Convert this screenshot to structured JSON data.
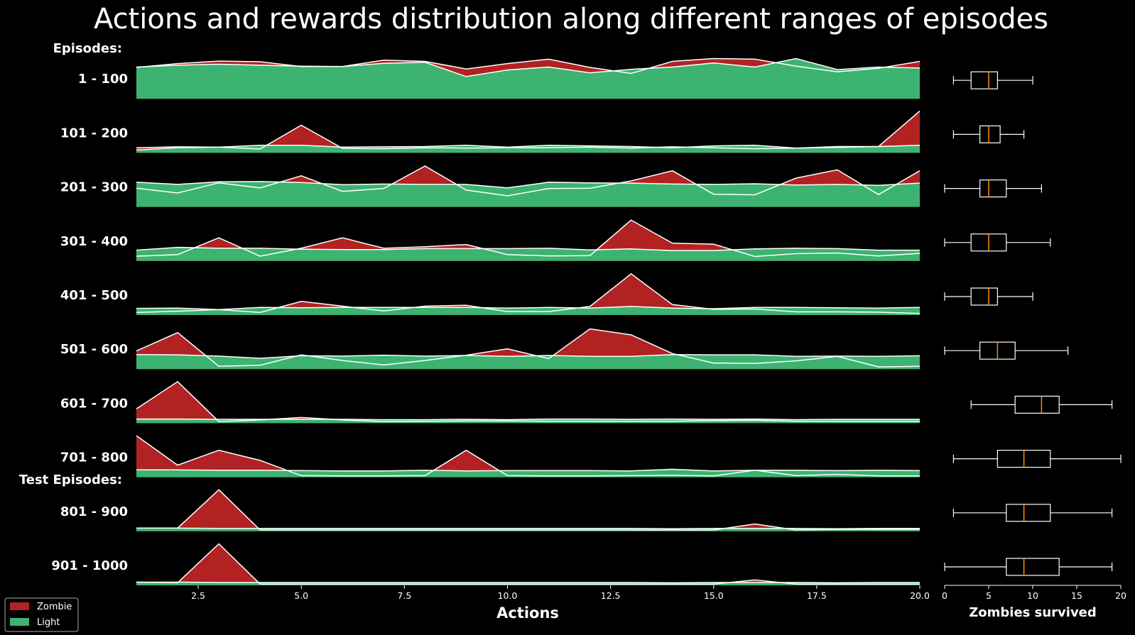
{
  "chart_data": {
    "type": "area",
    "title": "Actions and rewards distribution along different ranges of episodes",
    "group_labels": [
      "Episodes:",
      "Test Episodes:"
    ],
    "xlabel": "Actions",
    "box_xlabel": "Zombies survived",
    "x": [
      1,
      2,
      3,
      4,
      5,
      6,
      7,
      8,
      9,
      10,
      11,
      12,
      13,
      14,
      15,
      16,
      17,
      18,
      19,
      20
    ],
    "xlim": [
      1,
      20
    ],
    "xticks": [
      2.5,
      5.0,
      7.5,
      10.0,
      12.5,
      15.0,
      17.5,
      20.0
    ],
    "xtick_labels": [
      "2.5",
      "5.0",
      "7.5",
      "10.0",
      "12.5",
      "15.0",
      "17.5",
      "20.0"
    ],
    "box_xlim": [
      0,
      20
    ],
    "box_xticks": [
      0,
      5,
      10,
      15,
      20
    ],
    "box_xtick_labels": [
      "0",
      "5",
      "10",
      "15",
      "20"
    ],
    "legend": {
      "position": "bottom-left",
      "entries": [
        {
          "name": "Zombie",
          "color": "#b22222"
        },
        {
          "name": "Light",
          "color": "#3cb371"
        }
      ]
    },
    "colors": {
      "zombie": "#b22222",
      "light": "#3cb371",
      "median": "#ff8c00",
      "line": "#ffffff",
      "background": "#000000"
    },
    "rows": [
      {
        "label": "1 - 100",
        "zombie": [
          0.99,
          1.11,
          1.19,
          1.17,
          1.02,
          1.02,
          1.22,
          1.18,
          0.94,
          1.11,
          1.25,
          0.99,
          0.8,
          1.18,
          1.27,
          1.25,
          1.03,
          0.85,
          0.96,
          1.18
        ],
        "light": [
          1.0,
          1.06,
          1.09,
          1.06,
          1.03,
          1.02,
          1.12,
          1.15,
          0.7,
          0.91,
          1.0,
          0.82,
          0.93,
          1.0,
          1.13,
          1.0,
          1.27,
          0.92,
          1.0,
          0.97
        ],
        "box": {
          "whislo": 1,
          "q1": 3,
          "med": 5,
          "q3": 6,
          "whishi": 10
        }
      },
      {
        "label": "101 - 200",
        "zombie": [
          0.16,
          0.19,
          0.18,
          0.12,
          0.87,
          0.14,
          0.13,
          0.16,
          0.15,
          0.16,
          0.16,
          0.18,
          0.15,
          0.19,
          0.16,
          0.13,
          0.15,
          0.17,
          0.2,
          1.32
        ],
        "light": [
          0.09,
          0.16,
          0.18,
          0.24,
          0.24,
          0.18,
          0.19,
          0.2,
          0.24,
          0.18,
          0.24,
          0.22,
          0.2,
          0.16,
          0.22,
          0.24,
          0.15,
          0.2,
          0.2,
          0.24
        ],
        "box": {
          "whislo": 1,
          "q1": 4,
          "med": 5,
          "q3": 6.3,
          "whishi": 9
        }
      },
      {
        "label": "201 - 300",
        "zombie": [
          0.59,
          0.44,
          0.76,
          0.6,
          0.98,
          0.49,
          0.58,
          1.29,
          0.53,
          0.35,
          0.58,
          0.59,
          0.82,
          1.14,
          0.4,
          0.38,
          0.91,
          1.17,
          0.39,
          1.14
        ],
        "light": [
          0.78,
          0.71,
          0.79,
          0.8,
          0.77,
          0.7,
          0.72,
          0.71,
          0.71,
          0.6,
          0.78,
          0.76,
          0.75,
          0.72,
          0.71,
          0.73,
          0.69,
          0.71,
          0.68,
          0.75
        ],
        "box": {
          "whislo": 0,
          "q1": 4,
          "med": 5,
          "q3": 7,
          "whishi": 11
        }
      },
      {
        "label": "301 - 400",
        "zombie": [
          0.15,
          0.2,
          0.73,
          0.15,
          0.4,
          0.73,
          0.4,
          0.45,
          0.52,
          0.2,
          0.16,
          0.17,
          1.29,
          0.56,
          0.53,
          0.14,
          0.23,
          0.25,
          0.16,
          0.24
        ],
        "light": [
          0.34,
          0.43,
          0.4,
          0.4,
          0.37,
          0.36,
          0.36,
          0.39,
          0.39,
          0.39,
          0.4,
          0.35,
          0.38,
          0.33,
          0.33,
          0.38,
          0.4,
          0.39,
          0.34,
          0.34
        ],
        "box": {
          "whislo": 0,
          "q1": 3,
          "med": 5,
          "q3": 7,
          "whishi": 12
        }
      },
      {
        "label": "401 - 500",
        "zombie": [
          0.08,
          0.12,
          0.17,
          0.08,
          0.43,
          0.28,
          0.13,
          0.28,
          0.31,
          0.11,
          0.11,
          0.27,
          1.3,
          0.33,
          0.18,
          0.19,
          0.1,
          0.1,
          0.09,
          0.05
        ],
        "light": [
          0.21,
          0.22,
          0.17,
          0.24,
          0.23,
          0.24,
          0.24,
          0.24,
          0.24,
          0.22,
          0.24,
          0.22,
          0.27,
          0.22,
          0.2,
          0.24,
          0.24,
          0.23,
          0.22,
          0.24
        ],
        "box": {
          "whislo": 0,
          "q1": 3,
          "med": 5,
          "q3": 6,
          "whishi": 10
        }
      },
      {
        "label": "501 - 600",
        "zombie": [
          0.57,
          1.15,
          0.09,
          0.12,
          0.45,
          0.27,
          0.13,
          0.27,
          0.44,
          0.64,
          0.33,
          1.27,
          1.08,
          0.49,
          0.19,
          0.18,
          0.26,
          0.4,
          0.07,
          0.09
        ],
        "light": [
          0.46,
          0.45,
          0.41,
          0.34,
          0.42,
          0.41,
          0.44,
          0.41,
          0.43,
          0.4,
          0.43,
          0.4,
          0.4,
          0.46,
          0.45,
          0.45,
          0.4,
          0.41,
          0.4,
          0.42
        ],
        "box": {
          "whislo": 0,
          "q1": 4,
          "med": 6,
          "q3": 8,
          "whishi": 14
        }
      },
      {
        "label": "601 - 700",
        "zombie": [
          0.45,
          1.31,
          0.05,
          0.1,
          0.18,
          0.1,
          0.05,
          0.06,
          0.07,
          0.07,
          0.06,
          0.06,
          0.06,
          0.06,
          0.08,
          0.09,
          0.06,
          0.06,
          0.06,
          0.06
        ],
        "light": [
          0.13,
          0.13,
          0.12,
          0.12,
          0.12,
          0.12,
          0.11,
          0.11,
          0.12,
          0.11,
          0.13,
          0.13,
          0.12,
          0.13,
          0.12,
          0.13,
          0.11,
          0.12,
          0.12,
          0.12
        ],
        "box": {
          "whislo": 3,
          "q1": 8,
          "med": 11,
          "q3": 13,
          "whishi": 19
        }
      },
      {
        "label": "701 - 800",
        "zombie": [
          1.31,
          0.38,
          0.85,
          0.53,
          0.05,
          0.04,
          0.04,
          0.05,
          0.85,
          0.05,
          0.04,
          0.04,
          0.05,
          0.06,
          0.04,
          0.22,
          0.05,
          0.09,
          0.04,
          0.04
        ],
        "light": [
          0.23,
          0.23,
          0.22,
          0.22,
          0.21,
          0.2,
          0.2,
          0.22,
          0.2,
          0.21,
          0.21,
          0.21,
          0.2,
          0.25,
          0.2,
          0.22,
          0.22,
          0.21,
          0.22,
          0.21
        ],
        "box": {
          "whislo": 1,
          "q1": 6,
          "med": 9,
          "q3": 12,
          "whishi": 20
        }
      },
      {
        "label": "801 - 900",
        "zombie": [
          0.1,
          0.1,
          1.31,
          0.04,
          0.04,
          0.04,
          0.04,
          0.04,
          0.04,
          0.04,
          0.04,
          0.04,
          0.04,
          0.04,
          0.04,
          0.23,
          0.04,
          0.06,
          0.06,
          0.06
        ],
        "light": [
          0.1,
          0.1,
          0.09,
          0.09,
          0.09,
          0.09,
          0.09,
          0.09,
          0.09,
          0.09,
          0.09,
          0.09,
          0.09,
          0.08,
          0.09,
          0.09,
          0.09,
          0.08,
          0.09,
          0.09
        ],
        "box": {
          "whislo": 1,
          "q1": 7,
          "med": 9,
          "q3": 12,
          "whishi": 19
        }
      },
      {
        "label": "901 - 1000",
        "zombie": [
          0.1,
          0.08,
          1.31,
          0.04,
          0.04,
          0.04,
          0.04,
          0.04,
          0.04,
          0.04,
          0.04,
          0.04,
          0.04,
          0.04,
          0.04,
          0.17,
          0.04,
          0.04,
          0.04,
          0.04
        ],
        "light": [
          0.1,
          0.1,
          0.09,
          0.09,
          0.09,
          0.09,
          0.09,
          0.09,
          0.09,
          0.09,
          0.09,
          0.09,
          0.09,
          0.08,
          0.09,
          0.09,
          0.09,
          0.08,
          0.09,
          0.09
        ],
        "box": {
          "whislo": 0,
          "q1": 7,
          "med": 9,
          "q3": 13,
          "whishi": 19
        }
      }
    ]
  }
}
